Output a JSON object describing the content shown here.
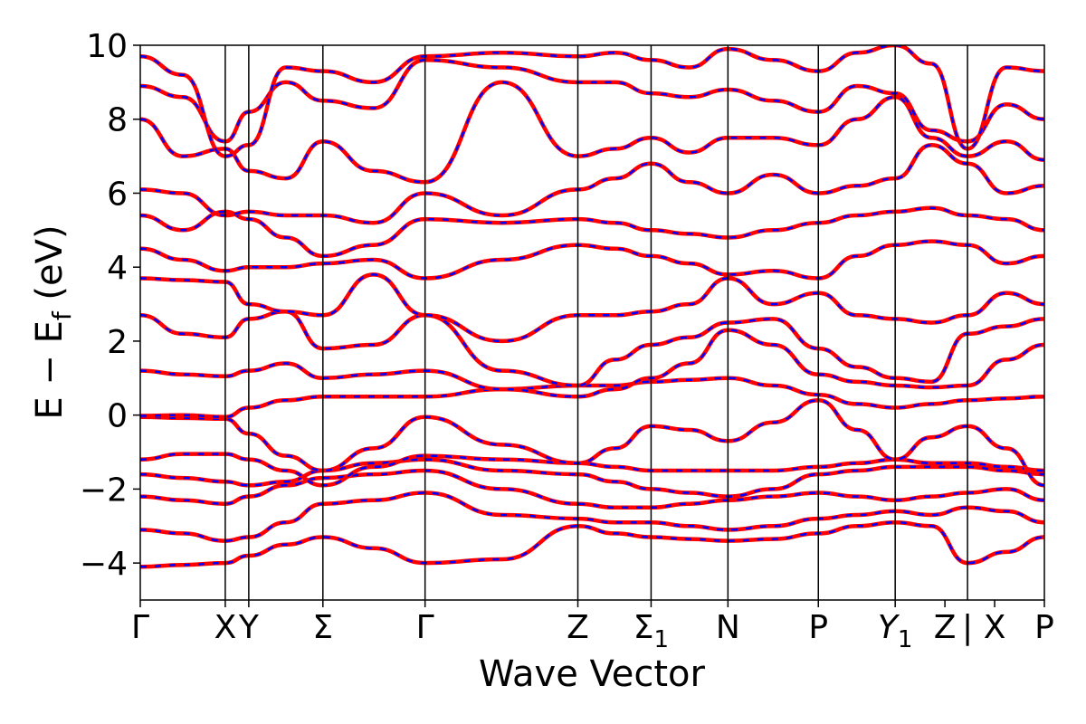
{
  "chart_data": {
    "type": "line",
    "title": "",
    "xlabel": "Wave Vector",
    "ylabel": "E − E_f (eV)",
    "ylabel_parts": {
      "main": "E − E",
      "sub": "f",
      "unit": " (eV)"
    },
    "ylim": [
      -5,
      10
    ],
    "yticks": [
      {
        "value": -4,
        "label": "−4"
      },
      {
        "value": -2,
        "label": "−2"
      },
      {
        "value": 0,
        "label": "0"
      },
      {
        "value": 2,
        "label": "2"
      },
      {
        "value": 4,
        "label": "4"
      },
      {
        "value": 6,
        "label": "6"
      },
      {
        "value": 8,
        "label": "8"
      },
      {
        "value": 10,
        "label": "10"
      }
    ],
    "xlim": [
      0,
      1
    ],
    "high_symmetry_points": [
      {
        "position": 0.0,
        "label": "Γ"
      },
      {
        "position": 0.094,
        "label": "X"
      },
      {
        "position": 0.12,
        "label": "Y"
      },
      {
        "position": 0.202,
        "label": "Σ"
      },
      {
        "position": 0.315,
        "label": "Γ"
      },
      {
        "position": 0.484,
        "label": "Z"
      },
      {
        "position": 0.565,
        "label": "Σ",
        "sub": "1"
      },
      {
        "position": 0.65,
        "label": "N"
      },
      {
        "position": 0.75,
        "label": "P"
      },
      {
        "position": 0.835,
        "label": "Y",
        "sub": "1"
      },
      {
        "position": 0.89,
        "label": "Z"
      },
      {
        "position": 0.915,
        "label": "|"
      },
      {
        "position": 0.945,
        "label": "X"
      },
      {
        "position": 1.0,
        "label": "P"
      }
    ],
    "segment_breaks": [
      0.094,
      0.12,
      0.202,
      0.315,
      0.484,
      0.565,
      0.65,
      0.75,
      0.835,
      0.915
    ],
    "series_style": [
      {
        "color": "#ff0000",
        "style": "solid"
      },
      {
        "color": "#0000ff",
        "style": "dashed"
      }
    ],
    "grid": false,
    "legend": "none",
    "bands": [
      {
        "x": [
          0,
          0.047,
          0.094,
          0.12,
          0.161,
          0.202,
          0.258,
          0.315,
          0.4,
          0.484,
          0.525,
          0.565,
          0.607,
          0.65,
          0.7,
          0.75,
          0.793,
          0.835,
          0.875,
          0.915,
          0.958,
          1.0
        ],
        "y": [
          -4.1,
          -4.05,
          -4.0,
          -3.8,
          -3.5,
          -3.3,
          -3.6,
          -4.0,
          -3.9,
          -3.0,
          -3.2,
          -3.3,
          -3.35,
          -3.4,
          -3.35,
          -3.2,
          -3.0,
          -2.9,
          -3.0,
          -4.0,
          -3.7,
          -3.3
        ]
      },
      {
        "x": [
          0,
          0.047,
          0.094,
          0.12,
          0.161,
          0.202,
          0.258,
          0.315,
          0.4,
          0.484,
          0.525,
          0.565,
          0.607,
          0.65,
          0.7,
          0.75,
          0.793,
          0.835,
          0.875,
          0.915,
          0.958,
          1.0
        ],
        "y": [
          -3.1,
          -3.2,
          -3.4,
          -3.3,
          -2.9,
          -2.4,
          -2.3,
          -2.1,
          -2.7,
          -2.8,
          -2.9,
          -2.9,
          -3.0,
          -3.1,
          -3.0,
          -2.8,
          -2.7,
          -2.6,
          -2.7,
          -2.5,
          -2.6,
          -2.9
        ]
      },
      {
        "x": [
          0,
          0.047,
          0.094,
          0.12,
          0.161,
          0.202,
          0.258,
          0.315,
          0.4,
          0.484,
          0.525,
          0.565,
          0.607,
          0.65,
          0.7,
          0.75,
          0.793,
          0.835,
          0.875,
          0.915,
          0.958,
          1.0
        ],
        "y": [
          -2.2,
          -2.3,
          -2.4,
          -2.2,
          -1.9,
          -1.7,
          -1.6,
          -1.5,
          -2.0,
          -2.4,
          -2.5,
          -2.5,
          -2.4,
          -2.3,
          -2.2,
          -2.1,
          -2.2,
          -2.3,
          -2.2,
          -2.1,
          -2.0,
          -2.3
        ]
      },
      {
        "x": [
          0,
          0.047,
          0.094,
          0.12,
          0.161,
          0.202,
          0.258,
          0.315,
          0.4,
          0.484,
          0.525,
          0.565,
          0.607,
          0.65,
          0.7,
          0.75,
          0.793,
          0.835,
          0.875,
          0.915,
          0.958,
          1.0
        ],
        "y": [
          -1.6,
          -1.7,
          -1.8,
          -1.9,
          -1.8,
          -1.5,
          -1.3,
          -1.2,
          -1.5,
          -1.6,
          -1.8,
          -2.0,
          -2.1,
          -2.2,
          -2.0,
          -1.6,
          -1.5,
          -1.4,
          -1.4,
          -1.4,
          -1.5,
          -1.6
        ]
      },
      {
        "x": [
          0,
          0.047,
          0.094,
          0.12,
          0.161,
          0.202,
          0.258,
          0.315,
          0.4,
          0.484,
          0.525,
          0.565,
          0.607,
          0.65,
          0.7,
          0.75,
          0.793,
          0.835,
          0.875,
          0.915,
          0.958,
          1.0
        ],
        "y": [
          -1.2,
          -1.05,
          -1.05,
          -1.2,
          -1.5,
          -1.9,
          -1.4,
          -1.1,
          -1.2,
          -1.3,
          -1.4,
          -1.5,
          -1.5,
          -1.5,
          -1.5,
          -1.4,
          -1.3,
          -1.2,
          -1.3,
          -1.3,
          -1.4,
          -1.5
        ]
      },
      {
        "x": [
          0,
          0.047,
          0.094,
          0.12,
          0.161,
          0.202,
          0.258,
          0.315,
          0.4,
          0.484,
          0.525,
          0.565,
          0.607,
          0.65,
          0.7,
          0.75,
          0.793,
          0.835,
          0.875,
          0.915,
          0.958,
          1.0
        ],
        "y": [
          -0.05,
          -0.08,
          -0.1,
          -0.5,
          -1.1,
          -1.5,
          -0.9,
          -0.05,
          -0.8,
          -1.3,
          -0.9,
          -0.3,
          -0.4,
          -0.7,
          -0.2,
          0.4,
          -0.4,
          -1.2,
          -0.6,
          -0.3,
          -0.9,
          -1.9
        ]
      },
      {
        "x": [
          0,
          0.047,
          0.094,
          0.12,
          0.161,
          0.202,
          0.258,
          0.315,
          0.4,
          0.484,
          0.525,
          0.565,
          0.607,
          0.65,
          0.7,
          0.75,
          0.793,
          0.835,
          0.875,
          0.915,
          0.958,
          1.0
        ],
        "y": [
          -0.02,
          0.0,
          -0.05,
          0.2,
          0.4,
          0.5,
          0.5,
          0.5,
          0.7,
          0.8,
          0.8,
          0.9,
          0.95,
          1.0,
          0.8,
          0.55,
          0.3,
          0.2,
          0.3,
          0.4,
          0.45,
          0.5
        ]
      },
      {
        "x": [
          0,
          0.047,
          0.094,
          0.12,
          0.161,
          0.202,
          0.258,
          0.315,
          0.4,
          0.484,
          0.525,
          0.565,
          0.607,
          0.65,
          0.7,
          0.75,
          0.793,
          0.835,
          0.875,
          0.915,
          0.958,
          1.0
        ],
        "y": [
          1.2,
          1.1,
          1.05,
          1.2,
          1.4,
          1.0,
          1.1,
          1.2,
          0.7,
          0.5,
          0.7,
          1.0,
          1.4,
          2.3,
          1.9,
          1.1,
          0.9,
          0.8,
          0.75,
          0.8,
          1.5,
          1.9
        ]
      },
      {
        "x": [
          0,
          0.047,
          0.094,
          0.12,
          0.161,
          0.202,
          0.258,
          0.315,
          0.4,
          0.484,
          0.525,
          0.565,
          0.607,
          0.65,
          0.7,
          0.75,
          0.793,
          0.835,
          0.875,
          0.915,
          0.958,
          1.0
        ],
        "y": [
          2.7,
          2.2,
          2.1,
          2.6,
          2.8,
          1.8,
          1.9,
          2.7,
          1.2,
          0.8,
          1.5,
          1.9,
          2.1,
          2.5,
          2.6,
          1.8,
          1.3,
          1.0,
          0.9,
          2.2,
          2.4,
          2.6
        ]
      },
      {
        "x": [
          0,
          0.047,
          0.094,
          0.12,
          0.161,
          0.202,
          0.258,
          0.315,
          0.4,
          0.484,
          0.525,
          0.565,
          0.607,
          0.65,
          0.7,
          0.75,
          0.793,
          0.835,
          0.875,
          0.915,
          0.958,
          1.0
        ],
        "y": [
          3.7,
          3.65,
          3.6,
          3.0,
          2.8,
          2.7,
          3.8,
          2.7,
          2.0,
          2.7,
          2.7,
          2.8,
          3.0,
          3.7,
          3.0,
          3.3,
          2.7,
          2.6,
          2.5,
          2.7,
          3.3,
          3.0
        ]
      },
      {
        "x": [
          0,
          0.047,
          0.094,
          0.12,
          0.161,
          0.202,
          0.258,
          0.315,
          0.4,
          0.484,
          0.525,
          0.565,
          0.607,
          0.65,
          0.7,
          0.75,
          0.793,
          0.835,
          0.875,
          0.915,
          0.958,
          1.0
        ],
        "y": [
          4.5,
          4.2,
          3.9,
          4.0,
          4.0,
          4.1,
          4.2,
          3.7,
          4.2,
          4.6,
          4.5,
          4.3,
          4.1,
          3.8,
          3.9,
          3.7,
          4.3,
          4.6,
          4.7,
          4.6,
          4.1,
          4.3
        ]
      },
      {
        "x": [
          0,
          0.047,
          0.094,
          0.12,
          0.161,
          0.202,
          0.258,
          0.315,
          0.4,
          0.484,
          0.525,
          0.565,
          0.607,
          0.65,
          0.7,
          0.75,
          0.793,
          0.835,
          0.875,
          0.915,
          0.958,
          1.0
        ],
        "y": [
          5.4,
          5.0,
          5.5,
          5.3,
          4.8,
          4.3,
          4.6,
          5.3,
          5.2,
          5.3,
          5.2,
          5.0,
          4.9,
          4.8,
          5.0,
          5.2,
          5.4,
          5.5,
          5.6,
          5.4,
          5.3,
          5.0
        ]
      },
      {
        "x": [
          0,
          0.047,
          0.094,
          0.12,
          0.161,
          0.202,
          0.258,
          0.315,
          0.4,
          0.484,
          0.525,
          0.565,
          0.607,
          0.65,
          0.7,
          0.75,
          0.793,
          0.835,
          0.875,
          0.915,
          0.958,
          1.0
        ],
        "y": [
          6.1,
          6.0,
          5.4,
          5.5,
          5.4,
          5.4,
          5.2,
          6.0,
          5.4,
          6.1,
          6.4,
          6.8,
          6.3,
          6.0,
          6.5,
          6.0,
          6.2,
          6.4,
          7.3,
          6.8,
          6.0,
          6.2
        ]
      },
      {
        "x": [
          0,
          0.047,
          0.094,
          0.12,
          0.161,
          0.202,
          0.258,
          0.315,
          0.4,
          0.484,
          0.525,
          0.565,
          0.607,
          0.65,
          0.7,
          0.75,
          0.793,
          0.835,
          0.875,
          0.915,
          0.958,
          1.0
        ],
        "y": [
          8.0,
          7.0,
          7.2,
          6.6,
          6.4,
          7.4,
          6.6,
          6.3,
          9.0,
          7.0,
          7.2,
          7.5,
          7.1,
          7.5,
          7.5,
          7.3,
          8.0,
          8.6,
          7.5,
          7.0,
          7.4,
          6.9
        ]
      },
      {
        "x": [
          0,
          0.047,
          0.094,
          0.12,
          0.161,
          0.202,
          0.258,
          0.315,
          0.4,
          0.484,
          0.525,
          0.565,
          0.607,
          0.65,
          0.7,
          0.75,
          0.793,
          0.835,
          0.875,
          0.915,
          0.958,
          1.0
        ],
        "y": [
          8.9,
          8.6,
          7.4,
          8.2,
          9.0,
          8.5,
          8.3,
          9.6,
          9.4,
          9.0,
          9.0,
          8.7,
          8.6,
          8.8,
          8.5,
          8.2,
          8.9,
          8.7,
          7.7,
          7.4,
          8.4,
          8.0
        ]
      },
      {
        "x": [
          0,
          0.047,
          0.094,
          0.12,
          0.161,
          0.202,
          0.258,
          0.315,
          0.4,
          0.484,
          0.525,
          0.565,
          0.607,
          0.65,
          0.7,
          0.75,
          0.793,
          0.835,
          0.875,
          0.915,
          0.958,
          1.0
        ],
        "y": [
          9.7,
          9.2,
          7.0,
          7.3,
          9.4,
          9.3,
          9.0,
          9.7,
          9.8,
          9.7,
          9.8,
          9.6,
          9.4,
          9.9,
          9.6,
          9.3,
          9.8,
          10.0,
          9.5,
          7.2,
          9.4,
          9.3
        ]
      }
    ]
  }
}
